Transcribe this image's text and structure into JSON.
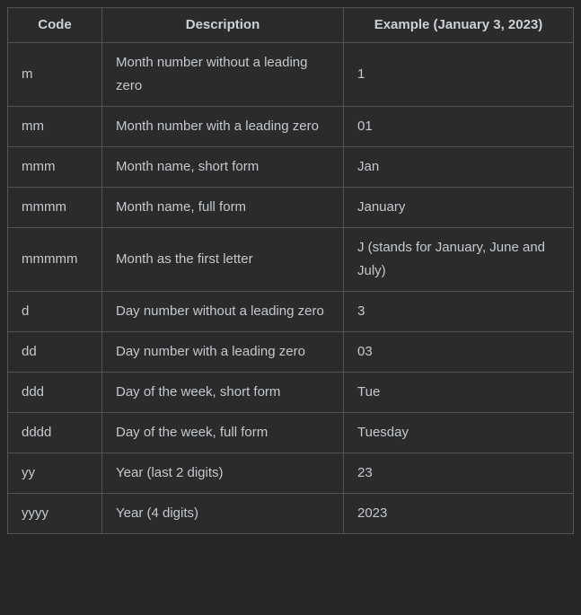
{
  "table": {
    "columns": [
      "Code",
      "Description",
      "Example (January 3, 2023)"
    ],
    "rows": [
      {
        "code": "m",
        "description": "Month number without a leading zero",
        "example": "1"
      },
      {
        "code": "mm",
        "description": "Month number with a leading zero",
        "example": "01"
      },
      {
        "code": "mmm",
        "description": "Month name, short form",
        "example": "Jan"
      },
      {
        "code": "mmmm",
        "description": "Month name, full form",
        "example": "January"
      },
      {
        "code": "mmmmm",
        "description": "Month as the first letter",
        "example": "J (stands for January, June and July)"
      },
      {
        "code": "d",
        "description": "Day number without a leading zero",
        "example": "3"
      },
      {
        "code": "dd",
        "description": "Day number with a leading zero",
        "example": "03"
      },
      {
        "code": "ddd",
        "description": "Day of the week, short form",
        "example": "Tue"
      },
      {
        "code": "dddd",
        "description": "Day of the week, full form",
        "example": "Tuesday"
      },
      {
        "code": "yy",
        "description": "Year (last 2 digits)",
        "example": "23"
      },
      {
        "code": "yyyy",
        "description": "Year (4 digits)",
        "example": "2023"
      }
    ]
  },
  "colors": {
    "page_background": "#262626",
    "cell_background": "#2b2b2b",
    "border": "#545454",
    "header_text": "#ccd1d7",
    "body_text": "#c3c9cf"
  }
}
